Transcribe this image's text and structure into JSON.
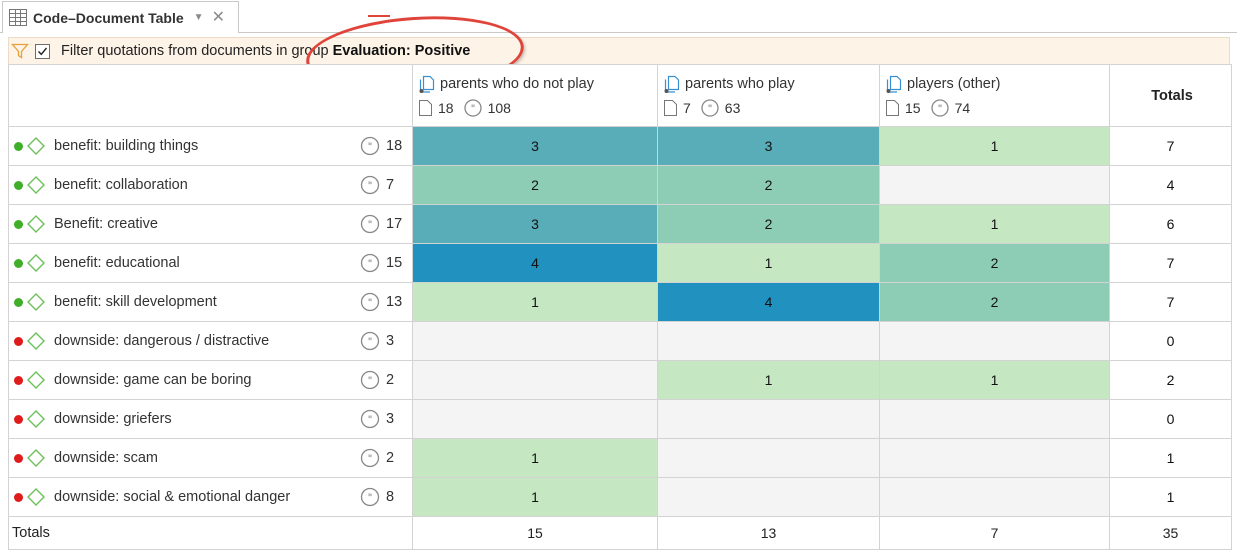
{
  "tab": {
    "title": "Code–Document Table",
    "menu_glyph": "▼",
    "close_glyph": "✕"
  },
  "filter": {
    "checked": true,
    "text": "Filter quotations from documents in group",
    "group": "Evaluation: Positive"
  },
  "columns": [
    {
      "name": "parents who do not play",
      "docs": "18",
      "quotes": "108"
    },
    {
      "name": "parents who play",
      "docs": "7",
      "quotes": "63"
    },
    {
      "name": "players (other)",
      "docs": "15",
      "quotes": "74"
    }
  ],
  "totals_header": "Totals",
  "rows": [
    {
      "status": "green",
      "code": "benefit: building things",
      "quotes": "18",
      "cells": [
        "3",
        "3",
        "1"
      ],
      "total": "7"
    },
    {
      "status": "green",
      "code": "benefit: collaboration",
      "quotes": "7",
      "cells": [
        "2",
        "2",
        ""
      ],
      "total": "4"
    },
    {
      "status": "green",
      "code": "Benefit: creative",
      "quotes": "17",
      "cells": [
        "3",
        "2",
        "1"
      ],
      "total": "6"
    },
    {
      "status": "green",
      "code": "benefit: educational",
      "quotes": "15",
      "cells": [
        "4",
        "1",
        "2"
      ],
      "total": "7"
    },
    {
      "status": "green",
      "code": "benefit: skill development",
      "quotes": "13",
      "cells": [
        "1",
        "4",
        "2"
      ],
      "total": "7"
    },
    {
      "status": "red",
      "code": "downside: dangerous / distractive",
      "quotes": "3",
      "cells": [
        "",
        "",
        ""
      ],
      "total": "0"
    },
    {
      "status": "red",
      "code": "downside: game can be boring",
      "quotes": "2",
      "cells": [
        "",
        "1",
        "1"
      ],
      "total": "2"
    },
    {
      "status": "red",
      "code": "downside: griefers",
      "quotes": "3",
      "cells": [
        "",
        "",
        ""
      ],
      "total": "0"
    },
    {
      "status": "red",
      "code": "downside: scam",
      "quotes": "2",
      "cells": [
        "1",
        "",
        ""
      ],
      "total": "1"
    },
    {
      "status": "red",
      "code": "downside: social & emotional danger",
      "quotes": "8",
      "cells": [
        "1",
        "",
        ""
      ],
      "total": "1"
    }
  ],
  "totals_row": {
    "label": "Totals",
    "values": [
      "15",
      "13",
      "7",
      "35"
    ]
  },
  "colors": {
    "status_green": "#3fae29",
    "status_red": "#e01b1b",
    "heat_empty": "#f4f4f4",
    "heat_1": "#c5e8c3",
    "heat_2": "#8dcdb6",
    "heat_3": "#58adb9",
    "heat_4": "#2192c0",
    "accent_red": "#e0433a",
    "filter_bg": "#fdf3e7"
  },
  "icons": {
    "tab": "table-grid-icon",
    "filter": "funnel-icon",
    "document_group": "document-group-icon",
    "document": "document-icon",
    "quotation": "quotation-icon",
    "code": "code-diamond-icon"
  }
}
